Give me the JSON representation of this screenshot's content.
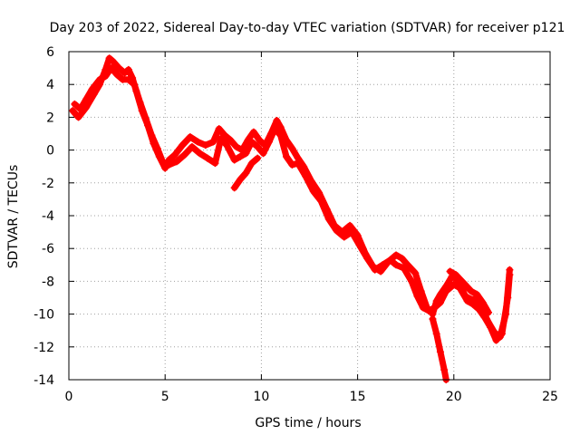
{
  "chart_data": {
    "type": "scatter",
    "title": "Day 203 of 2022, Sidereal Day-to-day VTEC variation (SDTVAR) for receiver p121",
    "xlabel": "GPS time / hours",
    "ylabel": "SDTVAR / TECUs",
    "xlim": [
      0,
      25
    ],
    "ylim": [
      -14,
      6
    ],
    "grid": true,
    "marker": "plus",
    "x_ticks": [
      "0",
      "5",
      "10",
      "15",
      "20",
      "25"
    ],
    "y_ticks": [
      "6",
      "4",
      "2",
      "0",
      "-2",
      "-4",
      "-6",
      "-8",
      "-10",
      "-12",
      "-14"
    ],
    "series": [
      {
        "name": "SDTVAR",
        "color": "#ff0000",
        "traces": [
          [
            [
              0.2,
              2.4
            ],
            [
              0.5,
              2.0
            ],
            [
              0.9,
              2.6
            ],
            [
              1.3,
              3.4
            ],
            [
              1.6,
              4.0
            ],
            [
              1.9,
              4.9
            ],
            [
              2.1,
              5.6
            ],
            [
              2.3,
              5.4
            ],
            [
              2.6,
              5.0
            ],
            [
              2.9,
              4.7
            ],
            [
              3.1,
              4.9
            ],
            [
              3.3,
              4.4
            ],
            [
              3.5,
              3.6
            ],
            [
              3.8,
              2.4
            ],
            [
              4.1,
              1.5
            ],
            [
              4.4,
              0.4
            ],
            [
              4.7,
              -0.4
            ],
            [
              5.0,
              -1.1
            ],
            [
              5.2,
              -0.6
            ],
            [
              5.5,
              -0.3
            ],
            [
              5.9,
              0.3
            ],
            [
              6.3,
              0.8
            ],
            [
              6.7,
              0.5
            ],
            [
              7.1,
              0.3
            ],
            [
              7.5,
              0.5
            ],
            [
              7.8,
              1.3
            ],
            [
              8.1,
              0.9
            ],
            [
              8.4,
              0.6
            ],
            [
              8.7,
              0.2
            ],
            [
              9.0,
              0.0
            ],
            [
              9.3,
              0.6
            ],
            [
              9.6,
              1.1
            ],
            [
              9.9,
              0.6
            ],
            [
              10.2,
              0.3
            ],
            [
              10.5,
              1.0
            ],
            [
              10.8,
              1.8
            ],
            [
              11.0,
              1.4
            ],
            [
              11.3,
              0.6
            ],
            [
              11.6,
              0.1
            ],
            [
              11.9,
              -0.5
            ],
            [
              12.2,
              -1.0
            ],
            [
              12.6,
              -1.9
            ],
            [
              13.0,
              -2.6
            ],
            [
              13.4,
              -3.6
            ],
            [
              13.8,
              -4.6
            ],
            [
              14.2,
              -5.0
            ],
            [
              14.6,
              -4.6
            ],
            [
              15.0,
              -5.2
            ],
            [
              15.4,
              -6.3
            ],
            [
              15.8,
              -7.1
            ],
            [
              16.2,
              -7.4
            ],
            [
              16.6,
              -6.8
            ],
            [
              17.0,
              -6.4
            ],
            [
              17.3,
              -6.6
            ],
            [
              17.6,
              -7.0
            ],
            [
              18.0,
              -7.5
            ],
            [
              18.3,
              -8.6
            ],
            [
              18.6,
              -9.6
            ],
            [
              18.9,
              -10.0
            ],
            [
              19.1,
              -9.2
            ],
            [
              19.3,
              -8.8
            ],
            [
              19.6,
              -8.3
            ],
            [
              19.9,
              -7.7
            ],
            [
              20.2,
              -7.9
            ],
            [
              20.6,
              -8.9
            ],
            [
              20.9,
              -9.1
            ],
            [
              21.2,
              -9.1
            ],
            [
              21.5,
              -9.8
            ],
            [
              21.8,
              -10.5
            ],
            [
              22.1,
              -11.1
            ],
            [
              22.4,
              -11.4
            ],
            [
              22.7,
              -10.0
            ],
            [
              22.9,
              -7.3
            ]
          ],
          [
            [
              0.3,
              2.8
            ],
            [
              0.6,
              2.5
            ],
            [
              0.9,
              3.1
            ],
            [
              1.2,
              3.7
            ],
            [
              1.6,
              4.3
            ],
            [
              1.9,
              4.5
            ],
            [
              2.2,
              5.0
            ],
            [
              2.5,
              4.6
            ],
            [
              2.8,
              4.3
            ],
            [
              3.1,
              4.3
            ],
            [
              3.4,
              4.0
            ],
            [
              3.7,
              2.9
            ],
            [
              4.0,
              1.9
            ],
            [
              4.3,
              0.9
            ],
            [
              4.6,
              0.1
            ],
            [
              4.9,
              -0.8
            ],
            [
              5.2,
              -0.9
            ],
            [
              5.6,
              -0.7
            ],
            [
              6.0,
              -0.3
            ],
            [
              6.4,
              0.2
            ],
            [
              6.8,
              -0.2
            ],
            [
              7.2,
              -0.5
            ],
            [
              7.6,
              -0.8
            ],
            [
              7.9,
              0.7
            ],
            [
              8.2,
              0.3
            ],
            [
              8.6,
              -0.6
            ],
            [
              8.9,
              -0.4
            ],
            [
              9.2,
              -0.2
            ],
            [
              9.5,
              0.5
            ],
            [
              9.8,
              0.2
            ],
            [
              10.1,
              -0.2
            ],
            [
              10.4,
              0.5
            ],
            [
              10.7,
              1.3
            ],
            [
              11.0,
              0.9
            ],
            [
              11.3,
              -0.4
            ],
            [
              11.6,
              -0.9
            ],
            [
              11.9,
              -0.8
            ],
            [
              12.3,
              -1.6
            ],
            [
              12.7,
              -2.5
            ],
            [
              13.1,
              -3.1
            ],
            [
              13.5,
              -4.2
            ],
            [
              13.9,
              -4.9
            ],
            [
              14.3,
              -5.3
            ],
            [
              14.7,
              -5.0
            ],
            [
              15.1,
              -5.8
            ],
            [
              15.5,
              -6.6
            ],
            [
              15.9,
              -7.3
            ],
            [
              16.3,
              -7.0
            ],
            [
              16.7,
              -6.7
            ],
            [
              17.0,
              -7.0
            ],
            [
              17.4,
              -7.2
            ],
            [
              17.8,
              -8.0
            ],
            [
              18.1,
              -8.9
            ],
            [
              18.4,
              -9.6
            ],
            [
              18.7,
              -9.8
            ],
            [
              19.0,
              -9.6
            ],
            [
              19.3,
              -9.3
            ],
            [
              19.6,
              -8.6
            ],
            [
              20.0,
              -8.2
            ],
            [
              20.3,
              -8.4
            ],
            [
              20.7,
              -9.2
            ],
            [
              21.0,
              -9.4
            ],
            [
              21.3,
              -9.7
            ],
            [
              21.6,
              -10.2
            ],
            [
              21.9,
              -10.8
            ],
            [
              22.2,
              -11.6
            ],
            [
              22.5,
              -11.2
            ],
            [
              22.8,
              -9.0
            ],
            [
              22.9,
              -7.6
            ]
          ],
          [
            [
              18.9,
              -10.3
            ],
            [
              19.1,
              -11.2
            ],
            [
              19.3,
              -12.3
            ],
            [
              19.5,
              -13.4
            ],
            [
              19.6,
              -14.0
            ]
          ],
          [
            [
              19.8,
              -7.4
            ],
            [
              20.1,
              -7.6
            ],
            [
              20.5,
              -8.1
            ],
            [
              20.9,
              -8.6
            ],
            [
              21.2,
              -8.8
            ],
            [
              21.5,
              -9.3
            ],
            [
              21.8,
              -9.9
            ]
          ],
          [
            [
              8.6,
              -2.3
            ],
            [
              8.9,
              -1.8
            ],
            [
              9.2,
              -1.4
            ],
            [
              9.5,
              -0.8
            ],
            [
              9.8,
              -0.5
            ]
          ]
        ]
      }
    ]
  }
}
